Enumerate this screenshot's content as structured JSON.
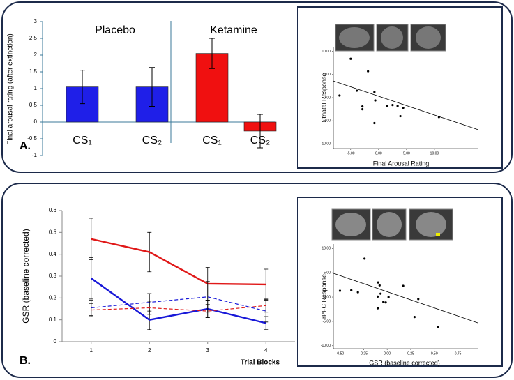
{
  "chart_data": [
    {
      "type": "bar",
      "panel_label": "A.",
      "ylabel": "Final arousal rating (after extinction)",
      "groups": [
        "Placebo",
        "Ketamine"
      ],
      "categories": [
        "CS₁",
        "CS₂",
        "CS₁",
        "CS₂"
      ],
      "values": [
        1.05,
        1.05,
        2.05,
        -0.27
      ],
      "errors": [
        0.5,
        0.58,
        0.45,
        0.5
      ],
      "colors": [
        "#1f1fe8",
        "#1f1fe8",
        "#f01010",
        "#f01010"
      ],
      "ylim": [
        -1,
        3
      ],
      "yticks": [
        -1,
        -0.5,
        0,
        0.5,
        1,
        1.5,
        2,
        2.5,
        3
      ]
    },
    {
      "type": "scatter",
      "ylabel": "Striatal Response",
      "xlabel": "Final Arousal Rating",
      "x": [
        -7.0,
        -5.0,
        -3.9,
        -2.9,
        -2.9,
        -1.9,
        -0.75,
        -0.6,
        -0.75,
        1.5,
        2.5,
        3.4,
        3.9,
        4.4,
        10.8
      ],
      "y": [
        0.45,
        8.4,
        1.5,
        -1.9,
        -2.5,
        5.7,
        1.2,
        -0.6,
        -5.5,
        -1.8,
        -1.6,
        -1.8,
        -4.0,
        -2.2,
        -4.2
      ],
      "fit": {
        "x": [
          -8.1,
          17.75
        ],
        "y": [
          3.6,
          -6.9
        ]
      },
      "xlim": [
        -8.1,
        17.75
      ],
      "ylim": [
        -11,
        11
      ],
      "xticks": [
        {
          "value": -5,
          "label": "-5.00"
        },
        {
          "value": 0,
          "label": "0.00"
        },
        {
          "value": 5,
          "label": "5.00"
        },
        {
          "value": 10,
          "label": "10.00"
        }
      ],
      "yticks": [
        {
          "value": -10,
          "label": "-10.00"
        },
        {
          "value": -5,
          "label": "-5.00"
        },
        {
          "value": 0,
          "label": "0.00"
        },
        {
          "value": 5,
          "label": "5.00"
        },
        {
          "value": 10,
          "label": "10.00"
        }
      ]
    },
    {
      "type": "line",
      "panel_label": "B.",
      "ylabel": "GSR (baseline corrected)",
      "xlabel": "Trial Blocks",
      "x": [
        1,
        2,
        3,
        4
      ],
      "series": [
        {
          "color": "#e01818",
          "dash": false,
          "values": [
            0.47,
            0.41,
            0.265,
            0.262
          ],
          "errors": [
            0.095,
            0.09,
            0.075,
            0.07
          ]
        },
        {
          "color": "#1818d8",
          "dash": false,
          "values": [
            0.29,
            0.1,
            0.15,
            0.085
          ],
          "errors": [
            0.095,
            0.045,
            0.04,
            0.03
          ]
        },
        {
          "color": "#1818d8",
          "dash": true,
          "values": [
            0.155,
            0.18,
            0.205,
            0.14
          ],
          "errors": [
            0.035,
            0.04,
            0.07,
            0.05
          ]
        },
        {
          "color": "#e01818",
          "dash": true,
          "values": [
            0.145,
            0.155,
            0.14,
            0.165
          ],
          "errors": [
            0.03,
            0.03,
            0.03,
            0.03
          ]
        }
      ],
      "xlim": [
        0.5,
        4.5
      ],
      "ylim": [
        0,
        0.6
      ],
      "xticks": [
        1,
        2,
        3,
        4
      ],
      "yticks": [
        0,
        0.1,
        0.2,
        0.3,
        0.4,
        0.5,
        0.6
      ]
    },
    {
      "type": "scatter",
      "ylabel": "rPFC Response",
      "xlabel": "GSR (baseline corrected)",
      "x": [
        -0.5,
        -0.38,
        -0.31,
        -0.24,
        -0.1,
        -0.096,
        -0.08,
        -0.1,
        -0.07,
        -0.04,
        -0.015,
        0.015,
        0.17,
        0.33,
        0.29,
        0.54
      ],
      "y": [
        1.3,
        1.4,
        1.0,
        7.9,
        0.1,
        3.0,
        2.4,
        -2.3,
        0.7,
        -1.0,
        -1.1,
        0,
        2.3,
        -0.4,
        -4.1,
        -6.1
      ],
      "fit": {
        "x": [
          -0.57,
          0.96
        ],
        "y": [
          4.9,
          -5.3
        ]
      },
      "xlim": [
        -0.57,
        0.96
      ],
      "ylim": [
        -10.6,
        10.9
      ],
      "xticks": [
        {
          "value": -0.5,
          "label": "-0.50"
        },
        {
          "value": -0.25,
          "label": "-0.25"
        },
        {
          "value": 0,
          "label": "0.00"
        },
        {
          "value": 0.25,
          "label": "0.25"
        },
        {
          "value": 0.5,
          "label": "0.50"
        },
        {
          "value": 0.75,
          "label": "0.75"
        }
      ],
      "yticks": [
        {
          "value": -10,
          "label": "-10.00"
        },
        {
          "value": -5,
          "label": "-5.00"
        },
        {
          "value": 0,
          "label": "0.00"
        },
        {
          "value": 5,
          "label": "5.00"
        },
        {
          "value": 10,
          "label": "10.00"
        }
      ]
    }
  ]
}
